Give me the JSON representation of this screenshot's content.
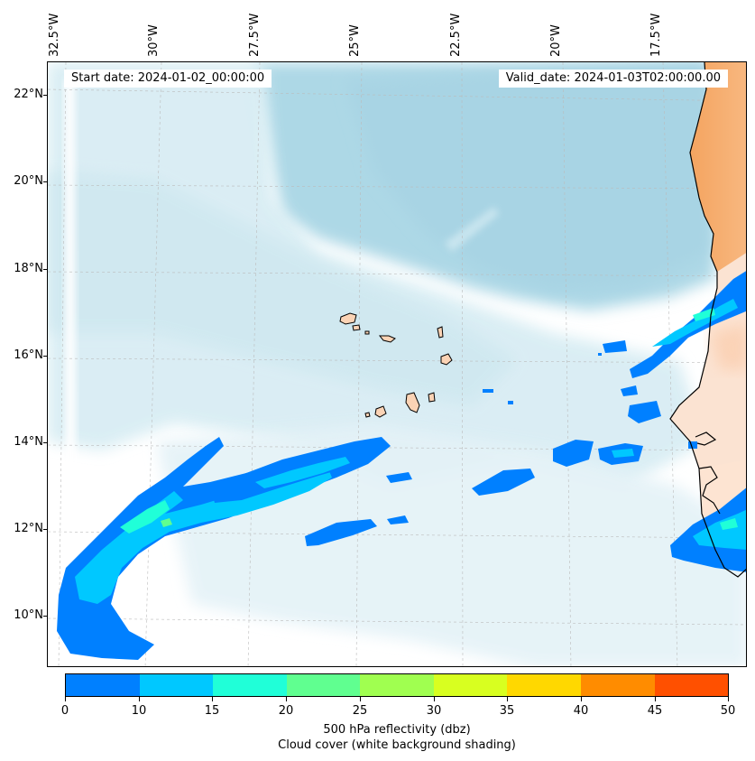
{
  "header": {
    "start_date": "Start date: 2024-01-02_00:00:00",
    "valid_date": "Valid_date: 2024-01-03T02:00:00.00"
  },
  "map": {
    "longitude_labels": [
      "32.5°W",
      "30°W",
      "27.5°W",
      "25°W",
      "22.5°W",
      "20°W",
      "17.5°W"
    ],
    "latitude_labels": [
      "22°N",
      "20°N",
      "18°N",
      "16°N",
      "14°N",
      "12°N",
      "10°N"
    ],
    "colors": {
      "ocean_cloud": "#add8e6",
      "land_desert": "#f4a460",
      "land_light": "#fbd9c0",
      "coast": "#000000"
    }
  },
  "colorbar": {
    "ticks": [
      "0",
      "10",
      "15",
      "20",
      "25",
      "30",
      "35",
      "40",
      "45",
      "50"
    ],
    "colors": [
      "#0080ff",
      "#00c8ff",
      "#20ffd8",
      "#60ff90",
      "#a0ff50",
      "#d8ff20",
      "#ffd800",
      "#ff8c00",
      "#ff5000"
    ],
    "title_line1": "500 hPa reflectivity (dbz)",
    "title_line2": "Cloud cover (white background shading)"
  }
}
